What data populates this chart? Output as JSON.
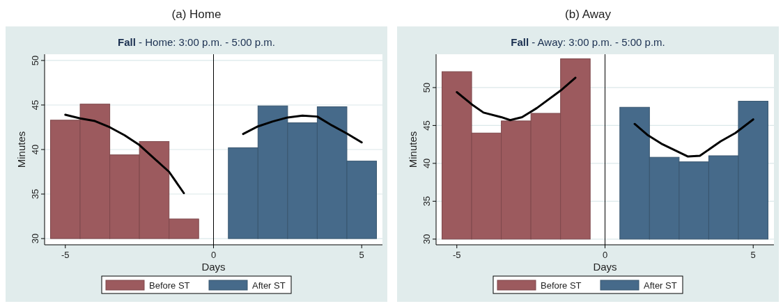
{
  "chart_data": [
    {
      "type": "bar",
      "title": "(a) Home",
      "subtitle": "Fall - Home: 3:00 p.m. - 5:00 p.m.",
      "xlabel": "Days",
      "ylabel": "Minutes",
      "xlim": [
        -5.7,
        5.7
      ],
      "xticks": [
        -5,
        0,
        5
      ],
      "ylim": [
        29.3,
        50.7
      ],
      "yticks": [
        30,
        35,
        40,
        45,
        50
      ],
      "grid": "y",
      "legend": "bottom",
      "ref_lines": [
        {
          "axis": "x",
          "value": 0,
          "color": "#000000"
        }
      ],
      "series": [
        {
          "name": "Before ST",
          "color": "#9c5a5e",
          "x": [
            -5,
            -4,
            -3,
            -2,
            -1
          ],
          "base": [
            30,
            30,
            30,
            30,
            30
          ],
          "values": [
            13.3,
            15.1,
            9.4,
            10.9,
            2.2
          ]
        },
        {
          "name": "After ST",
          "color": "#466a8a",
          "x": [
            1,
            2,
            3,
            4,
            5
          ],
          "base": [
            30,
            30,
            30,
            30,
            30
          ],
          "values": [
            10.2,
            14.9,
            13.0,
            14.8,
            8.7
          ]
        },
        {
          "type": "line",
          "color": "#000000",
          "x": [
            -5,
            -4.5,
            -4,
            -3.5,
            -3,
            -2.5,
            -2,
            -1.5,
            -1
          ],
          "values": [
            43.9,
            43.5,
            43.2,
            42.5,
            41.6,
            40.5,
            39.0,
            37.5,
            35.1
          ]
        },
        {
          "type": "line",
          "color": "#000000",
          "x": [
            1,
            1.5,
            2,
            2.5,
            3,
            3.5,
            4,
            4.5,
            5
          ],
          "values": [
            41.75,
            42.6,
            43.15,
            43.6,
            43.8,
            43.7,
            42.7,
            41.8,
            40.8
          ]
        }
      ]
    },
    {
      "type": "bar",
      "title": "(b) Away",
      "subtitle": "Fall - Away: 3:00 p.m. - 5:00 p.m.",
      "xlabel": "Days",
      "ylabel": "Minutes",
      "xlim": [
        -5.7,
        5.7
      ],
      "xticks": [
        -5,
        0,
        5
      ],
      "ylim": [
        29.25,
        54.4
      ],
      "yticks": [
        30,
        35,
        40,
        45,
        50
      ],
      "grid": "y",
      "legend": "bottom",
      "ref_lines": [
        {
          "axis": "x",
          "value": 0,
          "color": "#000000"
        }
      ],
      "series": [
        {
          "name": "Before ST",
          "color": "#9c5a5e",
          "x": [
            -5,
            -4,
            -3,
            -2,
            -1
          ],
          "base": [
            30,
            30,
            30,
            30,
            30
          ],
          "values": [
            22.1,
            14.0,
            15.6,
            16.6,
            23.8
          ]
        },
        {
          "name": "After ST",
          "color": "#466a8a",
          "x": [
            1,
            2,
            3,
            4,
            5
          ],
          "base": [
            30,
            30,
            30,
            30,
            30
          ],
          "values": [
            17.4,
            10.8,
            10.2,
            11.0,
            18.2
          ]
        },
        {
          "type": "line",
          "color": "#000000",
          "x": [
            -5,
            -4.5,
            -4.1,
            -3.5,
            -3.2,
            -2.8,
            -2.3,
            -1.5,
            -1
          ],
          "values": [
            49.4,
            47.8,
            46.7,
            46.1,
            45.7,
            46.1,
            47.3,
            49.6,
            51.3
          ]
        },
        {
          "type": "line",
          "color": "#000000",
          "x": [
            1,
            1.45,
            1.9,
            2.8,
            3.2,
            3.9,
            4.4,
            5
          ],
          "values": [
            45.2,
            43.7,
            42.6,
            40.9,
            41.0,
            42.9,
            44.0,
            45.8
          ]
        }
      ]
    }
  ]
}
